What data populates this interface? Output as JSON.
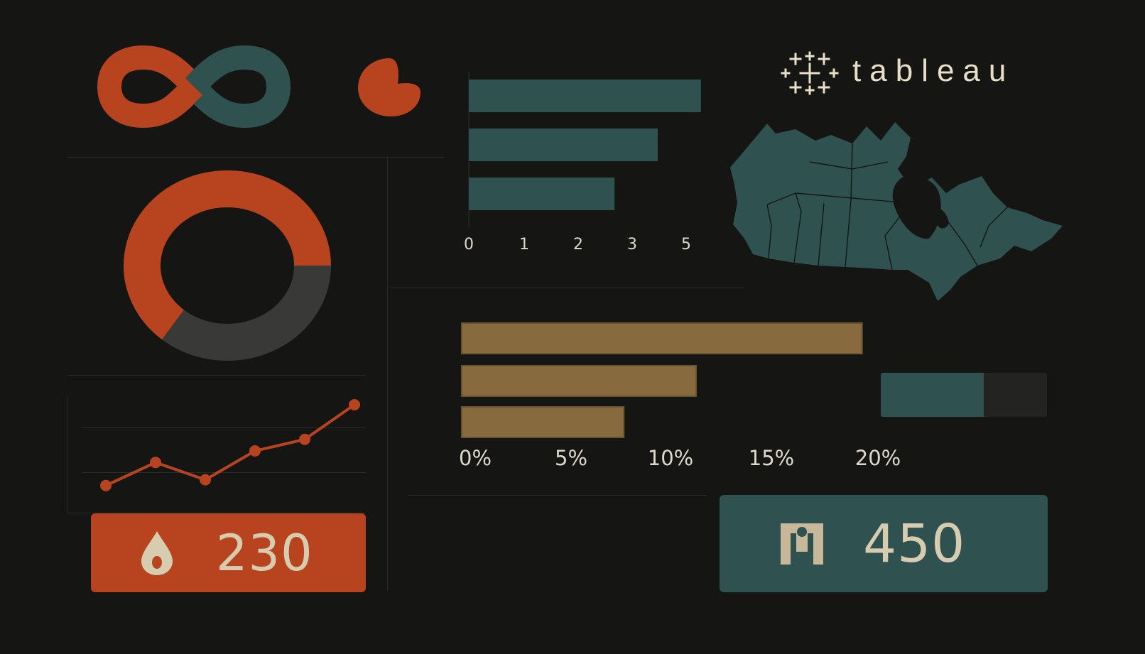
{
  "brand": {
    "name": "tableau",
    "logo_icon": "tableau-cross-logo-icon",
    "text_color": "#e8dfc6"
  },
  "colors": {
    "background": "#151514",
    "orange": "#b8441f",
    "teal": "#2f514f",
    "gold": "#876a3d",
    "dark_gray": "#393937",
    "cream": "#d8ccb0"
  },
  "icons": {
    "infinity": "infinity-logo-icon",
    "pacman": "pie-blob-icon",
    "map": "canada-map-icon",
    "drop": "water-drop-icon",
    "people": "people-icon"
  },
  "donut": {
    "orange_fraction": 0.64,
    "gray_fraction": 0.36
  },
  "line_chart": {
    "values": [
      1,
      3,
      1.5,
      4,
      5,
      8
    ]
  },
  "teal_bar_chart": {
    "x_ticks": [
      "0",
      "1",
      "2",
      "3",
      "5"
    ],
    "values": [
      4.3,
      3.5,
      2.7
    ]
  },
  "gold_bar_chart": {
    "x_ticks": [
      "0%",
      "5%",
      "10%",
      "15%",
      "20%"
    ],
    "values": [
      20.5,
      12,
      8.3
    ]
  },
  "progress_bar": {
    "fraction": 0.62
  },
  "kpis": {
    "drops": {
      "value": "230"
    },
    "people": {
      "value": "450"
    }
  }
}
